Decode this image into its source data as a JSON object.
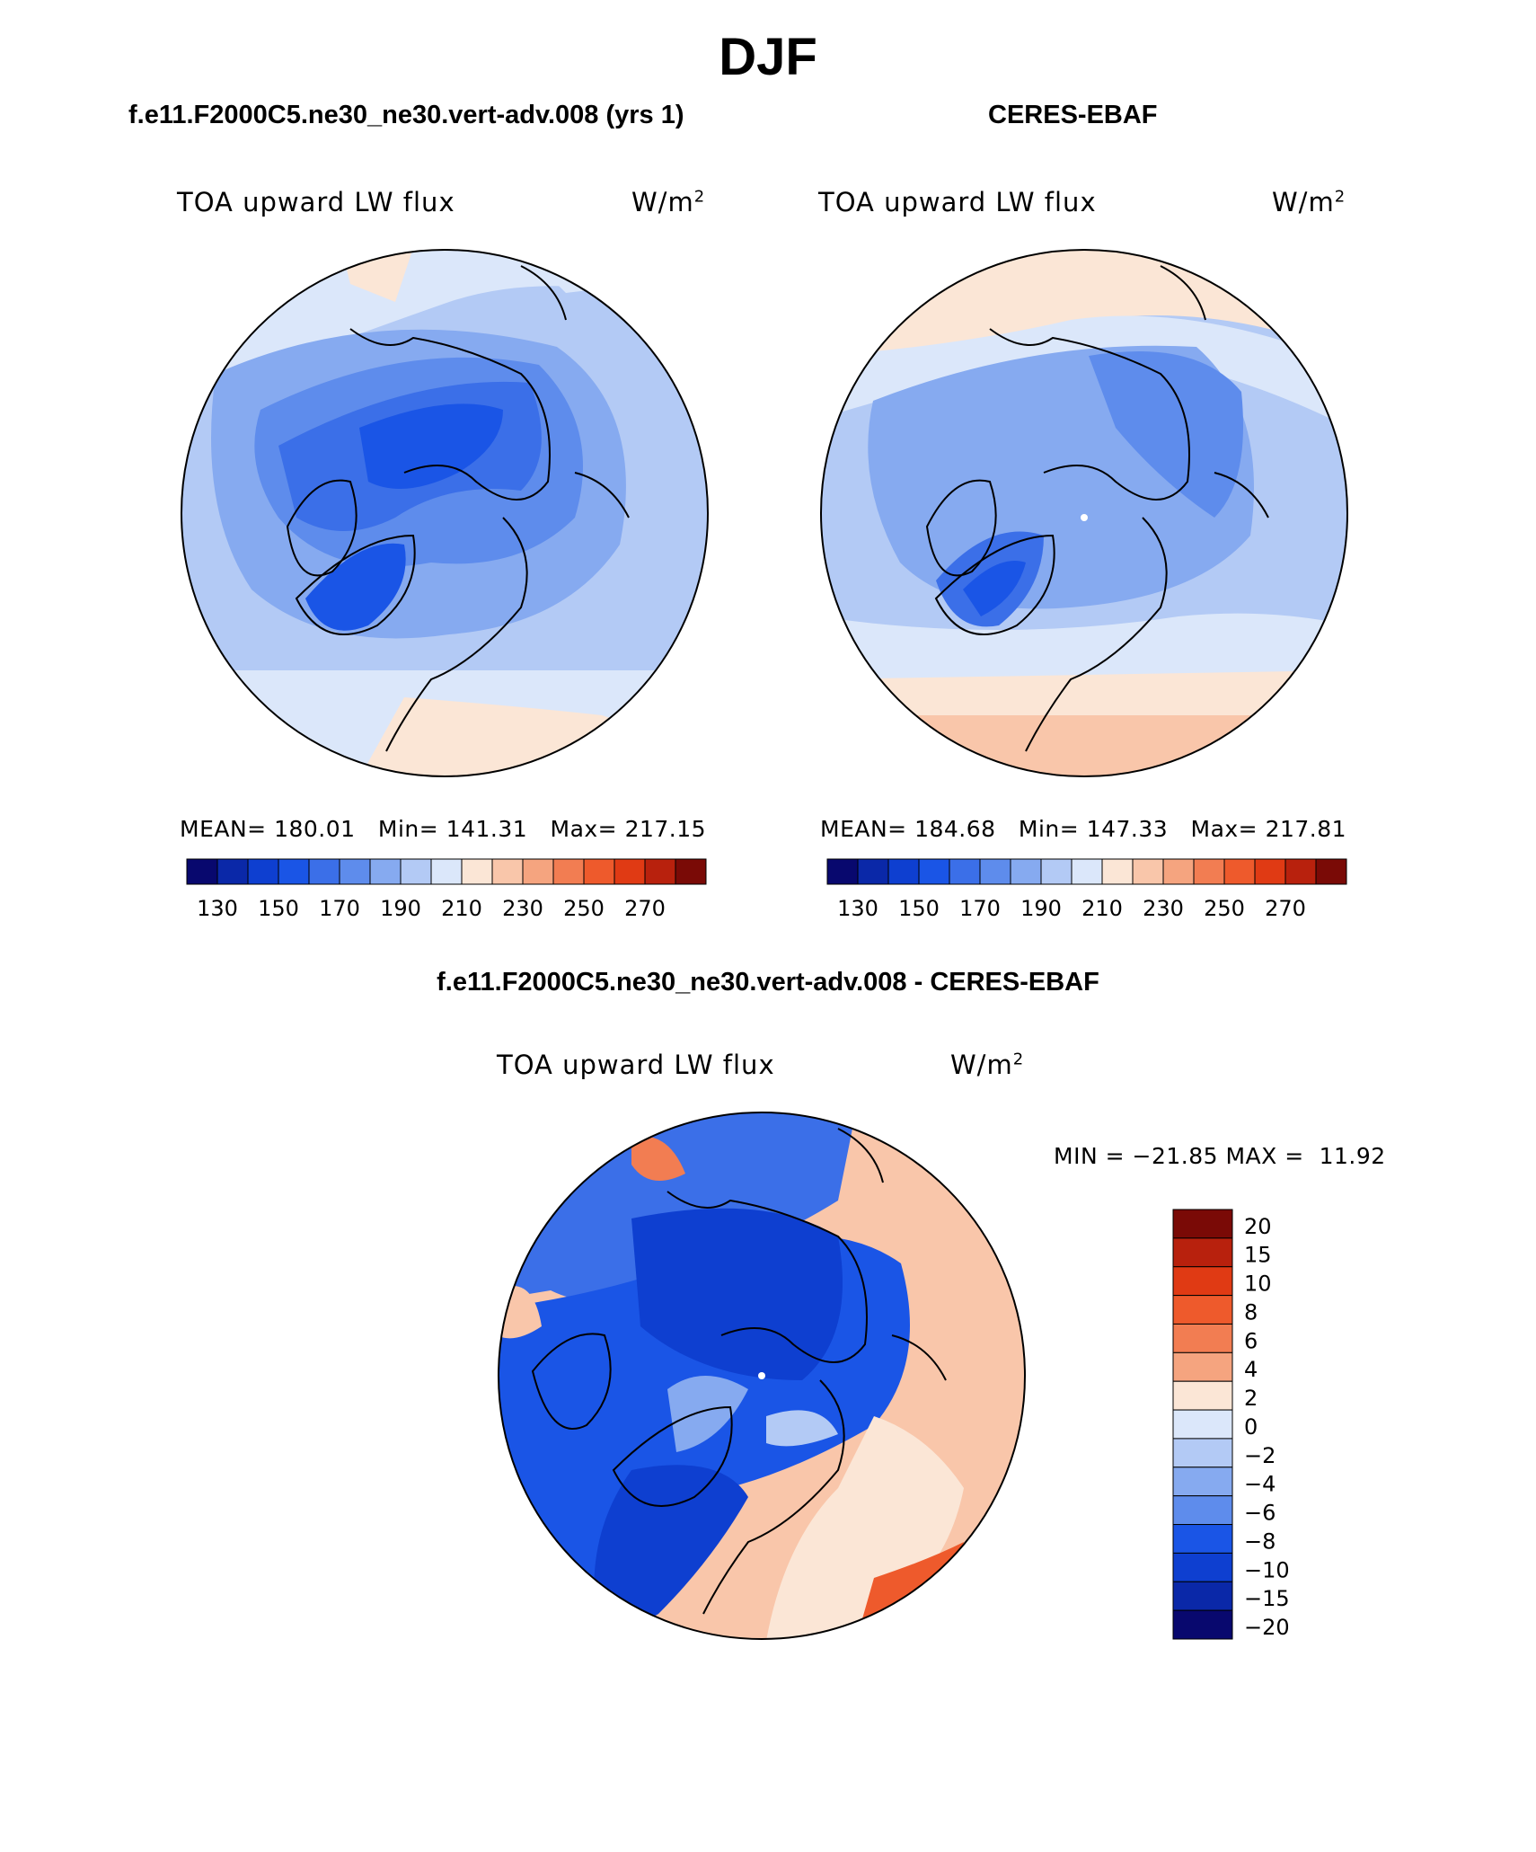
{
  "figure": {
    "title": "DJF",
    "model_title": "f.e11.F2000C5.ne30_ne30.vert-adv.008 (yrs 1)",
    "obs_title": "CERES-EBAF",
    "diff_title": "f.e11.F2000C5.ne30_ne30.vert-adv.008 - CERES-EBAF"
  },
  "chart_data": [
    {
      "type": "heatmap",
      "panel": "model",
      "projection": "north-polar-stereographic",
      "variable": "TOA upward LW flux",
      "units": "W/m",
      "units_exp": "2",
      "stats": {
        "mean_label": "MEAN=",
        "mean": "180.01",
        "min_label": "Min=",
        "min": "141.31",
        "max_label": "Max=",
        "max": "217.15"
      },
      "colorbar": {
        "orientation": "horizontal",
        "levels": [
          130,
          140,
          150,
          160,
          170,
          180,
          190,
          200,
          210,
          220,
          230,
          240,
          250,
          260,
          270
        ],
        "tick_labels": [
          "130",
          "150",
          "170",
          "190",
          "210",
          "230",
          "250",
          "270"
        ]
      }
    },
    {
      "type": "heatmap",
      "panel": "obs",
      "projection": "north-polar-stereographic",
      "variable": "TOA upward LW flux",
      "units": "W/m",
      "units_exp": "2",
      "stats": {
        "mean_label": "MEAN=",
        "mean": "184.68",
        "min_label": "Min=",
        "min": "147.33",
        "max_label": "Max=",
        "max": "217.81"
      },
      "colorbar": {
        "orientation": "horizontal",
        "levels": [
          130,
          140,
          150,
          160,
          170,
          180,
          190,
          200,
          210,
          220,
          230,
          240,
          250,
          260,
          270
        ],
        "tick_labels": [
          "130",
          "150",
          "170",
          "190",
          "210",
          "230",
          "250",
          "270"
        ]
      }
    },
    {
      "type": "heatmap",
      "panel": "difference",
      "projection": "north-polar-stereographic",
      "variable": "TOA upward LW flux",
      "units": "W/m",
      "units_exp": "2",
      "stats": {
        "min_label": "MIN =",
        "min": "−21.85",
        "max_label": "MAX =",
        "max": "11.92"
      },
      "colorbar": {
        "orientation": "vertical",
        "levels": [
          20,
          15,
          10,
          8,
          6,
          4,
          2,
          0,
          -2,
          -4,
          -6,
          -8,
          -10,
          -15,
          -20
        ],
        "tick_labels": [
          "20",
          "15",
          "10",
          "8",
          "6",
          "4",
          "2",
          "0",
          "−2",
          "−4",
          "−6",
          "−8",
          "−10",
          "−15",
          "−20"
        ]
      }
    }
  ],
  "colors": {
    "abs_palette": [
      "#08086e",
      "#0a28a8",
      "#0e3fd0",
      "#1a55e6",
      "#3b6fe8",
      "#5e8cec",
      "#86aaf0",
      "#b3caf5",
      "#dbe7fa",
      "#fbe6d6",
      "#f9c6aa",
      "#f5a47f",
      "#f27d52",
      "#ee5a2c",
      "#e03a14",
      "#b8210d",
      "#7a0a06"
    ],
    "diff_palette": [
      "#7a0a06",
      "#b8210d",
      "#e03a14",
      "#ee5a2c",
      "#f27d52",
      "#f5a47f",
      "#fbe6d6",
      "#dbe7fa",
      "#b3caf5",
      "#86aaf0",
      "#5e8cec",
      "#1a55e6",
      "#0e3fd0",
      "#0a28a8",
      "#08086e"
    ]
  }
}
